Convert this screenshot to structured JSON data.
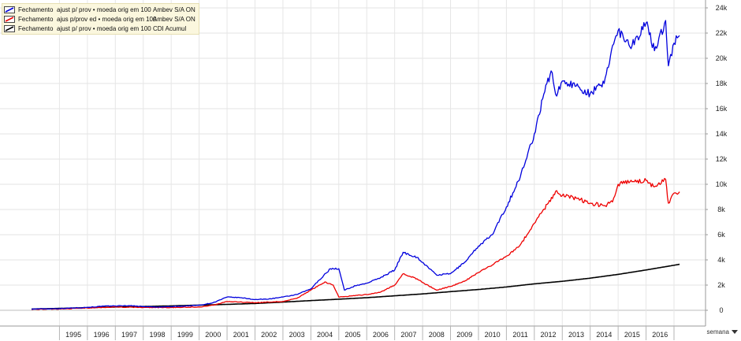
{
  "chart_data": {
    "type": "line",
    "grid": true,
    "legend_position": "top-left",
    "y_axis_side": "right",
    "ylim": [
      -1000,
      24000
    ],
    "xlim": [
      1993.8,
      2017.3
    ],
    "y_ticks": [
      {
        "value": 0,
        "label": "0"
      },
      {
        "value": 2000,
        "label": "2k"
      },
      {
        "value": 4000,
        "label": "4k"
      },
      {
        "value": 6000,
        "label": "6k"
      },
      {
        "value": 8000,
        "label": "8k"
      },
      {
        "value": 10000,
        "label": "10k"
      },
      {
        "value": 12000,
        "label": "12k"
      },
      {
        "value": 14000,
        "label": "14k"
      },
      {
        "value": 16000,
        "label": "16k"
      },
      {
        "value": 18000,
        "label": "18k"
      },
      {
        "value": 20000,
        "label": "20k"
      },
      {
        "value": 22000,
        "label": "22k"
      },
      {
        "value": 24000,
        "label": "24k"
      }
    ],
    "x_ticks": [
      "1995",
      "1996",
      "1997",
      "1998",
      "1999",
      "2000",
      "2001",
      "2002",
      "2003",
      "2004",
      "2005",
      "2006",
      "2007",
      "2008",
      "2009",
      "2010",
      "2011",
      "2012",
      "2013",
      "2014",
      "2015",
      "2016"
    ],
    "series": [
      {
        "field": "Fechamento",
        "adjustment": "ajust p/ prov • moeda orig em 100",
        "name": "Ambev S/A ON",
        "color": "#0000dd",
        "x": [
          1994.0,
          1995.0,
          1996.0,
          1996.6,
          1997.5,
          1998.0,
          1998.5,
          1999.0,
          1999.5,
          2000.0,
          2000.5,
          2001.0,
          2001.5,
          2002.0,
          2002.5,
          2003.0,
          2003.5,
          2004.0,
          2004.3,
          2004.7,
          2005.0,
          2005.2,
          2005.6,
          2006.0,
          2006.5,
          2007.0,
          2007.3,
          2007.8,
          2008.0,
          2008.5,
          2009.0,
          2009.5,
          2010.0,
          2010.5,
          2011.0,
          2011.5,
          2012.0,
          2012.3,
          2012.6,
          2012.8,
          2013.0,
          2013.5,
          2014.0,
          2014.5,
          2014.8,
          2015.0,
          2015.5,
          2016.0,
          2016.3,
          2016.7,
          2016.8,
          2017.0,
          2017.2
        ],
        "values": [
          100,
          140,
          230,
          330,
          370,
          300,
          250,
          290,
          340,
          400,
          600,
          1050,
          1000,
          850,
          900,
          1050,
          1250,
          1700,
          2400,
          3300,
          3300,
          1600,
          1950,
          2150,
          2600,
          3200,
          4600,
          4200,
          3800,
          2800,
          2900,
          3800,
          5100,
          6000,
          8200,
          10600,
          14000,
          16800,
          19000,
          17000,
          18200,
          17800,
          17200,
          18000,
          21000,
          22200,
          21000,
          22800,
          20600,
          23000,
          19400,
          21200,
          21800
        ]
      },
      {
        "field": "Fechamento",
        "adjustment": "ajus p/prov ed • moeda orig em 100",
        "name": "Ambev S/A ON",
        "color": "#ee0000",
        "x": [
          1994.0,
          1995.0,
          1996.0,
          1997.0,
          1998.0,
          1999.0,
          2000.0,
          2000.5,
          2001.0,
          2002.0,
          2003.0,
          2003.5,
          2004.0,
          2004.5,
          2004.8,
          2005.0,
          2005.5,
          2006.0,
          2006.5,
          2007.0,
          2007.3,
          2007.8,
          2008.0,
          2008.5,
          2009.0,
          2009.5,
          2010.0,
          2010.5,
          2011.0,
          2011.5,
          2012.0,
          2012.5,
          2012.8,
          2013.0,
          2013.5,
          2014.0,
          2014.5,
          2014.8,
          2015.0,
          2015.5,
          2016.0,
          2016.3,
          2016.7,
          2016.8,
          2017.0,
          2017.2
        ],
        "values": [
          80,
          100,
          180,
          260,
          220,
          220,
          260,
          400,
          700,
          600,
          700,
          950,
          1600,
          2250,
          2000,
          1050,
          1150,
          1250,
          1450,
          2000,
          2900,
          2500,
          2200,
          1600,
          1900,
          2300,
          3000,
          3600,
          4300,
          5200,
          6900,
          8500,
          9500,
          9100,
          8900,
          8500,
          8300,
          8600,
          10000,
          10200,
          10300,
          9800,
          10400,
          8500,
          9300,
          9400
        ]
      },
      {
        "field": "Fechamento",
        "adjustment": "ajust p/ prov • moeda orig em 100",
        "name": "CDI Acumul",
        "color": "#000000",
        "x": [
          1994.0,
          1995.0,
          1996.0,
          1997.0,
          1998.0,
          1999.0,
          2000.0,
          2001.0,
          2002.0,
          2003.0,
          2004.0,
          2005.0,
          2006.0,
          2007.0,
          2008.0,
          2009.0,
          2010.0,
          2011.0,
          2012.0,
          2013.0,
          2014.0,
          2015.0,
          2016.0,
          2017.2
        ],
        "values": [
          100,
          150,
          210,
          260,
          300,
          350,
          410,
          470,
          540,
          650,
          770,
          880,
          1000,
          1150,
          1300,
          1480,
          1650,
          1850,
          2100,
          2300,
          2550,
          2850,
          3200,
          3650
        ]
      }
    ]
  },
  "controls": {
    "period_label": "semana"
  }
}
